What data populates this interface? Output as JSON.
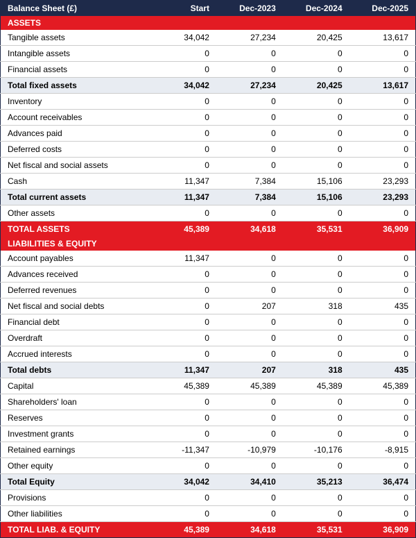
{
  "colors": {
    "header_bg": "#1e2a4a",
    "section_bg": "#e31b23",
    "subtotal_bg": "#e8ecf2",
    "border": "#cccccc",
    "text_light": "#ffffff"
  },
  "title": "Balance Sheet (£)",
  "columns": [
    "Start",
    "Dec-2023",
    "Dec-2024",
    "Dec-2025"
  ],
  "rows": [
    {
      "type": "section",
      "label": "ASSETS"
    },
    {
      "type": "data",
      "label": "Tangible assets",
      "v": [
        "34,042",
        "27,234",
        "20,425",
        "13,617"
      ]
    },
    {
      "type": "data",
      "label": "Intangible assets",
      "v": [
        "0",
        "0",
        "0",
        "0"
      ]
    },
    {
      "type": "data",
      "label": "Financial assets",
      "v": [
        "0",
        "0",
        "0",
        "0"
      ]
    },
    {
      "type": "sub",
      "label": "Total fixed assets",
      "v": [
        "34,042",
        "27,234",
        "20,425",
        "13,617"
      ]
    },
    {
      "type": "data",
      "label": "Inventory",
      "v": [
        "0",
        "0",
        "0",
        "0"
      ]
    },
    {
      "type": "data",
      "label": "Account receivables",
      "v": [
        "0",
        "0",
        "0",
        "0"
      ]
    },
    {
      "type": "data",
      "label": "Advances paid",
      "v": [
        "0",
        "0",
        "0",
        "0"
      ]
    },
    {
      "type": "data",
      "label": "Deferred costs",
      "v": [
        "0",
        "0",
        "0",
        "0"
      ]
    },
    {
      "type": "data",
      "label": "Net fiscal and social assets",
      "v": [
        "0",
        "0",
        "0",
        "0"
      ]
    },
    {
      "type": "data",
      "label": "Cash",
      "v": [
        "11,347",
        "7,384",
        "15,106",
        "23,293"
      ]
    },
    {
      "type": "sub",
      "label": "Total current assets",
      "v": [
        "11,347",
        "7,384",
        "15,106",
        "23,293"
      ]
    },
    {
      "type": "data",
      "label": "Other assets",
      "v": [
        "0",
        "0",
        "0",
        "0"
      ]
    },
    {
      "type": "grand",
      "label": "TOTAL ASSETS",
      "v": [
        "45,389",
        "34,618",
        "35,531",
        "36,909"
      ]
    },
    {
      "type": "section",
      "label": "LIABILITIES & EQUITY"
    },
    {
      "type": "data",
      "label": "Account payables",
      "v": [
        "11,347",
        "0",
        "0",
        "0"
      ]
    },
    {
      "type": "data",
      "label": "Advances received",
      "v": [
        "0",
        "0",
        "0",
        "0"
      ]
    },
    {
      "type": "data",
      "label": "Deferred revenues",
      "v": [
        "0",
        "0",
        "0",
        "0"
      ]
    },
    {
      "type": "data",
      "label": "Net fiscal and social debts",
      "v": [
        "0",
        "207",
        "318",
        "435"
      ]
    },
    {
      "type": "data",
      "label": "Financial debt",
      "v": [
        "0",
        "0",
        "0",
        "0"
      ]
    },
    {
      "type": "data",
      "label": "Overdraft",
      "v": [
        "0",
        "0",
        "0",
        "0"
      ]
    },
    {
      "type": "data",
      "label": "Accrued interests",
      "v": [
        "0",
        "0",
        "0",
        "0"
      ]
    },
    {
      "type": "sub",
      "label": "Total debts",
      "v": [
        "11,347",
        "207",
        "318",
        "435"
      ]
    },
    {
      "type": "data",
      "label": "Capital",
      "v": [
        "45,389",
        "45,389",
        "45,389",
        "45,389"
      ]
    },
    {
      "type": "data",
      "label": "Shareholders' loan",
      "v": [
        "0",
        "0",
        "0",
        "0"
      ]
    },
    {
      "type": "data",
      "label": "Reserves",
      "v": [
        "0",
        "0",
        "0",
        "0"
      ]
    },
    {
      "type": "data",
      "label": "Investment grants",
      "v": [
        "0",
        "0",
        "0",
        "0"
      ]
    },
    {
      "type": "data",
      "label": "Retained earnings",
      "v": [
        "-11,347",
        "-10,979",
        "-10,176",
        "-8,915"
      ]
    },
    {
      "type": "data",
      "label": "Other equity",
      "v": [
        "0",
        "0",
        "0",
        "0"
      ]
    },
    {
      "type": "sub",
      "label": "Total Equity",
      "v": [
        "34,042",
        "34,410",
        "35,213",
        "36,474"
      ]
    },
    {
      "type": "data",
      "label": "Provisions",
      "v": [
        "0",
        "0",
        "0",
        "0"
      ]
    },
    {
      "type": "data",
      "label": "Other liabilities",
      "v": [
        "0",
        "0",
        "0",
        "0"
      ]
    },
    {
      "type": "grand",
      "label": "TOTAL LIAB. & EQUITY",
      "v": [
        "45,389",
        "34,618",
        "35,531",
        "36,909"
      ]
    }
  ]
}
